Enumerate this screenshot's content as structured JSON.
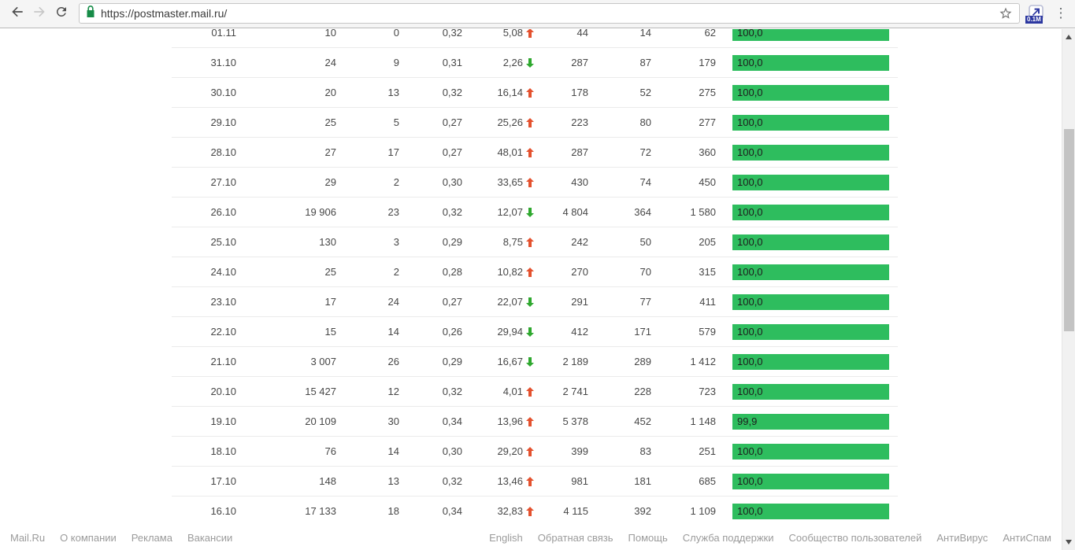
{
  "browser": {
    "url": "https://postmaster.mail.ru/",
    "extension_badge": "0.1M"
  },
  "colors": {
    "bar_green": "#2ebd5e",
    "trend_up": "#e4512e",
    "trend_down": "#2fa82f",
    "lock_green": "#178c48",
    "extension_blue": "#2c37a0"
  },
  "table": {
    "rows": [
      {
        "date": "01.11",
        "v1": "10",
        "v2": "0",
        "v3": "0,32",
        "trend_value": "5,08",
        "trend": "up",
        "v4": "44",
        "v5": "14",
        "v6": "62",
        "bar": "100,0"
      },
      {
        "date": "31.10",
        "v1": "24",
        "v2": "9",
        "v3": "0,31",
        "trend_value": "2,26",
        "trend": "down",
        "v4": "287",
        "v5": "87",
        "v6": "179",
        "bar": "100,0"
      },
      {
        "date": "30.10",
        "v1": "20",
        "v2": "13",
        "v3": "0,32",
        "trend_value": "16,14",
        "trend": "up",
        "v4": "178",
        "v5": "52",
        "v6": "275",
        "bar": "100,0"
      },
      {
        "date": "29.10",
        "v1": "25",
        "v2": "5",
        "v3": "0,27",
        "trend_value": "25,26",
        "trend": "up",
        "v4": "223",
        "v5": "80",
        "v6": "277",
        "bar": "100,0"
      },
      {
        "date": "28.10",
        "v1": "27",
        "v2": "17",
        "v3": "0,27",
        "trend_value": "48,01",
        "trend": "up",
        "v4": "287",
        "v5": "72",
        "v6": "360",
        "bar": "100,0"
      },
      {
        "date": "27.10",
        "v1": "29",
        "v2": "2",
        "v3": "0,30",
        "trend_value": "33,65",
        "trend": "up",
        "v4": "430",
        "v5": "74",
        "v6": "450",
        "bar": "100,0"
      },
      {
        "date": "26.10",
        "v1": "19 906",
        "v2": "23",
        "v3": "0,32",
        "trend_value": "12,07",
        "trend": "down",
        "v4": "4 804",
        "v5": "364",
        "v6": "1 580",
        "bar": "100,0"
      },
      {
        "date": "25.10",
        "v1": "130",
        "v2": "3",
        "v3": "0,29",
        "trend_value": "8,75",
        "trend": "up",
        "v4": "242",
        "v5": "50",
        "v6": "205",
        "bar": "100,0"
      },
      {
        "date": "24.10",
        "v1": "25",
        "v2": "2",
        "v3": "0,28",
        "trend_value": "10,82",
        "trend": "up",
        "v4": "270",
        "v5": "70",
        "v6": "315",
        "bar": "100,0"
      },
      {
        "date": "23.10",
        "v1": "17",
        "v2": "24",
        "v3": "0,27",
        "trend_value": "22,07",
        "trend": "down",
        "v4": "291",
        "v5": "77",
        "v6": "411",
        "bar": "100,0"
      },
      {
        "date": "22.10",
        "v1": "15",
        "v2": "14",
        "v3": "0,26",
        "trend_value": "29,94",
        "trend": "down",
        "v4": "412",
        "v5": "171",
        "v6": "579",
        "bar": "100,0"
      },
      {
        "date": "21.10",
        "v1": "3 007",
        "v2": "26",
        "v3": "0,29",
        "trend_value": "16,67",
        "trend": "down",
        "v4": "2 189",
        "v5": "289",
        "v6": "1 412",
        "bar": "100,0"
      },
      {
        "date": "20.10",
        "v1": "15 427",
        "v2": "12",
        "v3": "0,32",
        "trend_value": "4,01",
        "trend": "up",
        "v4": "2 741",
        "v5": "228",
        "v6": "723",
        "bar": "100,0"
      },
      {
        "date": "19.10",
        "v1": "20 109",
        "v2": "30",
        "v3": "0,34",
        "trend_value": "13,96",
        "trend": "up",
        "v4": "5 378",
        "v5": "452",
        "v6": "1 148",
        "bar": "99,9"
      },
      {
        "date": "18.10",
        "v1": "76",
        "v2": "14",
        "v3": "0,30",
        "trend_value": "29,20",
        "trend": "up",
        "v4": "399",
        "v5": "83",
        "v6": "251",
        "bar": "100,0"
      },
      {
        "date": "17.10",
        "v1": "148",
        "v2": "13",
        "v3": "0,32",
        "trend_value": "13,46",
        "trend": "up",
        "v4": "981",
        "v5": "181",
        "v6": "685",
        "bar": "100,0"
      },
      {
        "date": "16.10",
        "v1": "17 133",
        "v2": "18",
        "v3": "0,34",
        "trend_value": "32,83",
        "trend": "up",
        "v4": "4 115",
        "v5": "392",
        "v6": "1 109",
        "bar": "100,0"
      }
    ]
  },
  "footer": {
    "left": [
      "Mail.Ru",
      "О компании",
      "Реклама",
      "Вакансии"
    ],
    "right": [
      "English",
      "Обратная связь",
      "Помощь",
      "Служба поддержки",
      "Сообщество пользователей",
      "АнтиВирус",
      "АнтиСпам"
    ]
  }
}
